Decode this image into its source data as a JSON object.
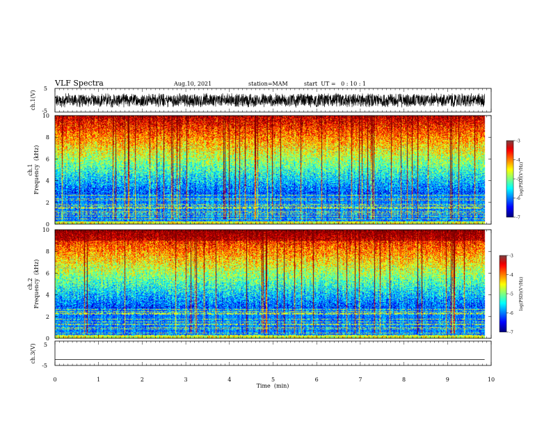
{
  "header": {
    "title": "VLF Spectra",
    "date": "Aug.10, 2021",
    "station": "station=MAM",
    "start": "start  UT =   0 : 10 : 1"
  },
  "chart_data": [
    {
      "type": "line",
      "name": "ch1-waveform",
      "ylabel": "ch.1(V)",
      "ylim": [
        -5,
        5
      ],
      "yticks": [
        "5",
        "-5"
      ],
      "xlim": [
        0,
        10
      ],
      "noise_amplitude": 3.2
    },
    {
      "type": "heatmap",
      "name": "ch1-spectrogram",
      "ylabel_top": "ch.1",
      "ylabel": "Frequency  (kHz)",
      "ylim": [
        0,
        10
      ],
      "yticks": [
        "0",
        "2",
        "4",
        "6",
        "8",
        "10"
      ],
      "xlim": [
        0,
        9.85
      ],
      "colorbar": {
        "label": "log(PSD)(V²/Hz)",
        "range": [
          -7,
          -3
        ],
        "ticks": [
          "-3",
          "-4",
          "-5",
          "-6",
          "-7"
        ]
      }
    },
    {
      "type": "heatmap",
      "name": "ch2-spectrogram",
      "ylabel_top": "ch.2",
      "ylabel": "Frequency  (kHz)",
      "ylim": [
        0,
        10
      ],
      "yticks": [
        "0",
        "2",
        "4",
        "6",
        "8",
        "10"
      ],
      "xlim": [
        0,
        9.85
      ],
      "colorbar": {
        "label": "log(PSD)(V²/Hz)",
        "range": [
          -7,
          -3
        ],
        "ticks": [
          "-3",
          "-4",
          "-5",
          "-6",
          "-7"
        ]
      }
    },
    {
      "type": "line",
      "name": "ch3-waveform",
      "ylabel": "ch.3(V)",
      "ylim": [
        -5,
        5
      ],
      "yticks": [
        "5",
        "-5"
      ],
      "xlim": [
        0,
        10
      ],
      "constant_value": -2.6
    }
  ],
  "xaxis": {
    "label": "Time  (min)",
    "ticks": [
      "0",
      "1",
      "2",
      "3",
      "4",
      "5",
      "6",
      "7",
      "8",
      "9",
      "10"
    ],
    "range": [
      0,
      10
    ]
  }
}
